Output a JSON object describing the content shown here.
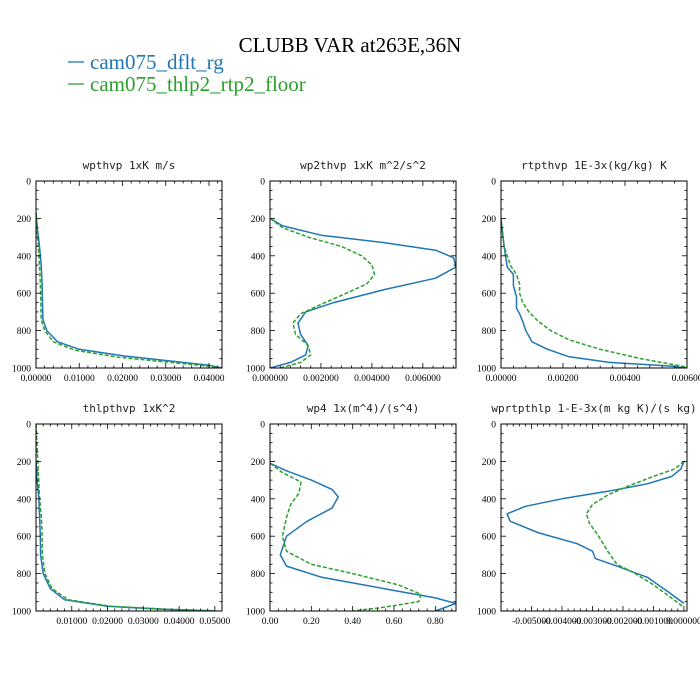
{
  "figure": {
    "title": "CLUBB VAR at263E,36N",
    "legend": [
      {
        "label": "cam075_dflt_rg",
        "color": "#1f77b4",
        "dash": "solid"
      },
      {
        "label": "cam075_thlp2_rtp2_floor",
        "color": "#2ca02c",
        "dash": "dashed"
      }
    ]
  },
  "chart_data": [
    {
      "type": "line",
      "title": "wpthvp  1xK m/s",
      "xlabel": "",
      "ylabel": "",
      "xlim": [
        0,
        0.043
      ],
      "ylim": [
        1000,
        0
      ],
      "xticks": [
        0,
        0.01,
        0.02,
        0.03,
        0.04
      ],
      "xtick_labels": [
        "0.00000",
        "0.01000",
        "0.02000",
        "0.03000",
        "0.04000"
      ],
      "yticks": [
        0,
        200,
        400,
        600,
        800,
        1000
      ],
      "ytick_labels": [
        "0",
        "200",
        "400",
        "600",
        "800",
        "1000"
      ],
      "series": [
        {
          "name": "cam075_dflt_rg",
          "x": [
            0.0,
            0.0003,
            0.0008,
            0.0012,
            0.0014,
            0.0015,
            0.0016,
            0.0025,
            0.005,
            0.01,
            0.02,
            0.03,
            0.04,
            0.043
          ],
          "y": [
            170,
            250,
            350,
            450,
            550,
            650,
            740,
            800,
            860,
            900,
            935,
            960,
            985,
            1000
          ]
        },
        {
          "name": "cam075_thlp2_rtp2_floor",
          "x": [
            0.0,
            0.0002,
            0.0005,
            0.0008,
            0.001,
            0.0011,
            0.0012,
            0.002,
            0.004,
            0.009,
            0.019,
            0.029,
            0.039,
            0.043
          ],
          "y": [
            170,
            250,
            350,
            450,
            550,
            650,
            740,
            800,
            860,
            905,
            942,
            965,
            988,
            1000
          ]
        }
      ]
    },
    {
      "type": "line",
      "title": "wp2thvp  1xK m^2/s^2",
      "xlabel": "",
      "ylabel": "",
      "xlim": [
        0,
        0.0073
      ],
      "ylim": [
        1000,
        0
      ],
      "xticks": [
        0,
        0.002,
        0.004,
        0.006
      ],
      "xtick_labels": [
        "0.000000",
        "0.002000",
        "0.004000",
        "0.006000"
      ],
      "yticks": [
        0,
        200,
        400,
        600,
        800,
        1000
      ],
      "ytick_labels": [
        "0",
        "200",
        "400",
        "600",
        "800",
        "1000"
      ],
      "series": [
        {
          "name": "cam075_dflt_rg",
          "x": [
            0.0,
            0.0005,
            0.002,
            0.0045,
            0.0065,
            0.0072,
            0.0073,
            0.0065,
            0.0045,
            0.0025,
            0.0014,
            0.0011,
            0.0012,
            0.0015,
            0.0014,
            0.0008,
            0.0
          ],
          "y": [
            200,
            240,
            290,
            330,
            370,
            410,
            460,
            520,
            580,
            650,
            700,
            760,
            820,
            880,
            930,
            970,
            1000
          ]
        },
        {
          "name": "cam075_thlp2_rtp2_floor",
          "x": [
            0.0,
            0.0005,
            0.0015,
            0.0028,
            0.0036,
            0.004,
            0.0041,
            0.0038,
            0.003,
            0.002,
            0.0012,
            0.0009,
            0.001,
            0.0015,
            0.0016,
            0.0012,
            0.0004
          ],
          "y": [
            200,
            250,
            300,
            350,
            400,
            450,
            500,
            550,
            600,
            660,
            710,
            760,
            820,
            880,
            930,
            970,
            1000
          ]
        }
      ]
    },
    {
      "type": "line",
      "title": "rtpthvp  1E-3x(kg/kg) K",
      "xlabel": "",
      "ylabel": "",
      "xlim": [
        0,
        0.006
      ],
      "ylim": [
        1000,
        0
      ],
      "xticks": [
        0,
        0.002,
        0.004,
        0.006
      ],
      "xtick_labels": [
        "0.00000",
        "0.00200",
        "0.00400",
        "0.00600"
      ],
      "yticks": [
        0,
        200,
        400,
        600,
        800,
        1000
      ],
      "ytick_labels": [
        "0",
        "200",
        "400",
        "600",
        "800",
        "1000"
      ],
      "series": [
        {
          "name": "cam075_dflt_rg",
          "x": [
            0.0,
            0.0001,
            0.0002,
            0.0004,
            0.0004,
            0.0005,
            0.0005,
            0.0006,
            0.0007,
            0.0008,
            0.001,
            0.0015,
            0.0022,
            0.0035,
            0.0055,
            0.006
          ],
          "y": [
            200,
            350,
            460,
            500,
            560,
            620,
            680,
            710,
            750,
            800,
            860,
            900,
            940,
            970,
            990,
            1000
          ]
        },
        {
          "name": "cam075_thlp2_rtp2_floor",
          "x": [
            0.0,
            0.0001,
            0.0003,
            0.0005,
            0.0006,
            0.0006,
            0.0007,
            0.0009,
            0.0012,
            0.0016,
            0.0022,
            0.0032,
            0.0045,
            0.006
          ],
          "y": [
            200,
            350,
            450,
            500,
            550,
            600,
            650,
            700,
            750,
            800,
            850,
            900,
            950,
            995
          ]
        }
      ]
    },
    {
      "type": "line",
      "title": "thlpthvp  1xK^2",
      "xlabel": "",
      "ylabel": "",
      "xlim": [
        0,
        0.052
      ],
      "ylim": [
        1000,
        0
      ],
      "xticks": [
        0.01,
        0.02,
        0.03,
        0.04,
        0.05
      ],
      "xtick_labels": [
        "0.01000",
        "0.02000",
        "0.03000",
        "0.04000",
        "0.05000"
      ],
      "yticks": [
        0,
        200,
        400,
        600,
        800,
        1000
      ],
      "ytick_labels": [
        "0",
        "200",
        "400",
        "600",
        "800",
        "1000"
      ],
      "series": [
        {
          "name": "cam075_dflt_rg",
          "x": [
            0.0,
            0.0003,
            0.0008,
            0.001,
            0.0012,
            0.0013,
            0.002,
            0.004,
            0.008,
            0.02,
            0.035,
            0.05
          ],
          "y": [
            200,
            300,
            400,
            500,
            600,
            700,
            800,
            880,
            940,
            975,
            990,
            1000
          ]
        },
        {
          "name": "cam075_thlp2_rtp2_floor",
          "x": [
            0.0,
            0.0005,
            0.001,
            0.0015,
            0.0017,
            0.0018,
            0.0025,
            0.0045,
            0.009,
            0.021,
            0.036,
            0.051
          ],
          "y": [
            0,
            200,
            400,
            500,
            600,
            700,
            800,
            880,
            940,
            975,
            990,
            1000
          ]
        }
      ]
    },
    {
      "type": "line",
      "title": "wp4  1x(m^4)/(s^4)",
      "xlabel": "",
      "ylabel": "",
      "xlim": [
        0,
        0.9
      ],
      "ylim": [
        1000,
        0
      ],
      "xticks": [
        0,
        0.2,
        0.4,
        0.6,
        0.8
      ],
      "xtick_labels": [
        "0.00",
        "0.20",
        "0.40",
        "0.60",
        "0.80"
      ],
      "yticks": [
        0,
        200,
        400,
        600,
        800,
        1000
      ],
      "ytick_labels": [
        "0",
        "200",
        "400",
        "600",
        "800",
        "1000"
      ],
      "series": [
        {
          "name": "cam075_dflt_rg",
          "x": [
            0.0,
            0.08,
            0.2,
            0.3,
            0.33,
            0.3,
            0.18,
            0.08,
            0.05,
            0.08,
            0.25,
            0.55,
            0.8,
            0.9,
            0.8
          ],
          "y": [
            210,
            250,
            300,
            350,
            390,
            450,
            520,
            600,
            700,
            760,
            820,
            880,
            930,
            960,
            1000
          ]
        },
        {
          "name": "cam075_thlp2_rtp2_floor",
          "x": [
            0.0,
            0.06,
            0.15,
            0.14,
            0.1,
            0.08,
            0.06,
            0.08,
            0.2,
            0.4,
            0.62,
            0.73,
            0.72,
            0.55,
            0.4
          ],
          "y": [
            210,
            260,
            310,
            370,
            430,
            500,
            600,
            680,
            750,
            800,
            860,
            910,
            950,
            980,
            1000
          ]
        }
      ]
    },
    {
      "type": "line",
      "title": "wprtpthlp  1-E-3x(m kg K)/(s kg)",
      "xlabel": "",
      "ylabel": "",
      "xlim": [
        -0.006,
        0.0001
      ],
      "ylim": [
        1000,
        0
      ],
      "xticks": [
        -0.005,
        -0.004,
        -0.003,
        -0.002,
        -0.001,
        0.0
      ],
      "xtick_labels": [
        "-0.005000",
        "-0.004000",
        "-0.003000",
        "-0.002000",
        "-0.001000",
        "0.000000"
      ],
      "yticks": [
        0,
        200,
        400,
        600,
        800,
        1000
      ],
      "ytick_labels": [
        "0",
        "200",
        "400",
        "600",
        "800",
        "1000"
      ],
      "series": [
        {
          "name": "cam075_dflt_rg",
          "x": [
            0.0,
            -0.0001,
            -0.0004,
            -0.0012,
            -0.0025,
            -0.004,
            -0.0052,
            -0.0058,
            -0.0057,
            -0.0048,
            -0.0035,
            -0.003,
            -0.0029,
            -0.0022,
            -0.0012,
            -0.0005,
            0.0
          ],
          "y": [
            200,
            240,
            280,
            320,
            360,
            400,
            440,
            480,
            520,
            580,
            640,
            680,
            720,
            760,
            820,
            900,
            960
          ]
        },
        {
          "name": "cam075_thlp2_rtp2_floor",
          "x": [
            0.0,
            -0.0003,
            -0.001,
            -0.0018,
            -0.0025,
            -0.003,
            -0.0032,
            -0.0031,
            -0.0028,
            -0.0025,
            -0.0022,
            -0.0016,
            -0.001,
            -0.0005,
            0.0
          ],
          "y": [
            200,
            240,
            280,
            330,
            380,
            430,
            480,
            530,
            600,
            680,
            750,
            800,
            860,
            920,
            980
          ]
        }
      ]
    }
  ]
}
